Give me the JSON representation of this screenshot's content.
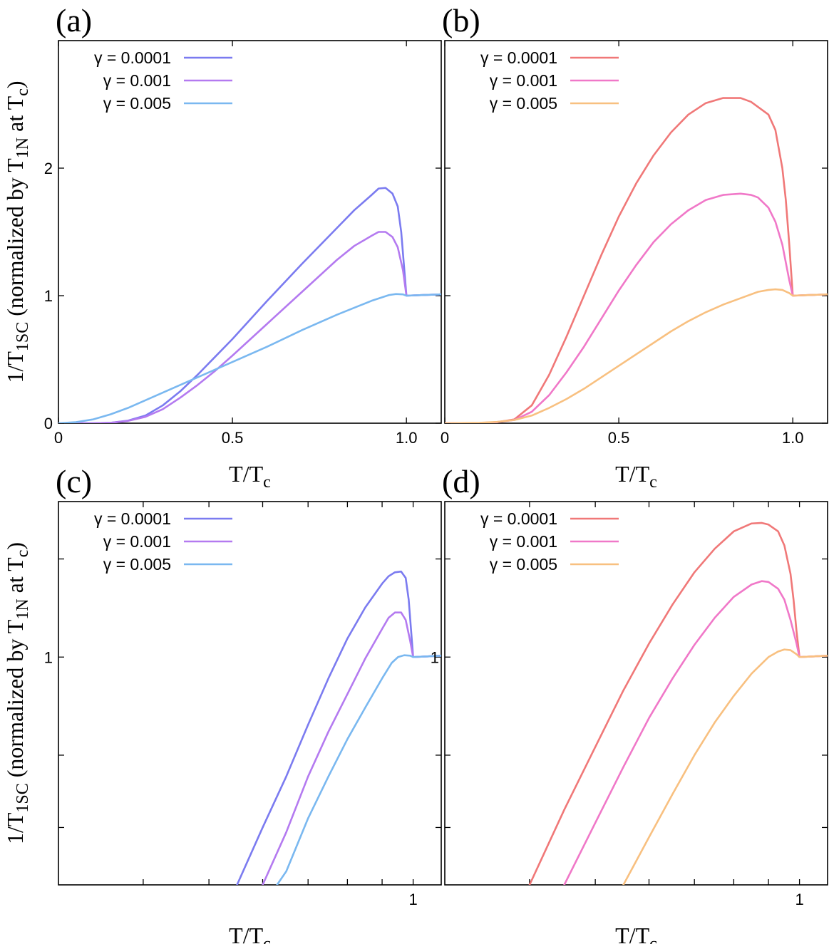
{
  "chart_data": [
    {
      "panel_label": "(a)",
      "type": "line",
      "xlabel_main": "T/T",
      "xlabel_sub": "c",
      "ylabel_parts": [
        "1/T",
        "1SC",
        " (normalized by T",
        "1N",
        " at T",
        "c",
        ")"
      ],
      "xlim": [
        0,
        1.1
      ],
      "ylim": [
        0,
        3
      ],
      "xscale": "linear",
      "yscale": "linear",
      "xticks": [
        {
          "v": 0,
          "label": "0"
        },
        {
          "v": 0.5,
          "label": "0.5"
        },
        {
          "v": 1.0,
          "label": "1.0"
        }
      ],
      "yticks": [
        {
          "v": 0,
          "label": "0"
        },
        {
          "v": 1,
          "label": "1"
        },
        {
          "v": 2,
          "label": "2"
        }
      ],
      "legend_position": "top-left",
      "series": [
        {
          "name": "γ = 0.0001",
          "color": "#7b7bf0",
          "x": [
            0,
            0.1,
            0.15,
            0.2,
            0.25,
            0.3,
            0.35,
            0.4,
            0.45,
            0.5,
            0.6,
            0.7,
            0.8,
            0.85,
            0.9,
            0.92,
            0.94,
            0.96,
            0.975,
            0.985,
            1.0,
            1.05,
            1.1
          ],
          "y": [
            0,
            0,
            0.003,
            0.02,
            0.06,
            0.14,
            0.25,
            0.38,
            0.52,
            0.66,
            0.96,
            1.25,
            1.53,
            1.67,
            1.79,
            1.84,
            1.845,
            1.8,
            1.7,
            1.5,
            1.0,
            1.005,
            1.01
          ]
        },
        {
          "name": "γ = 0.001",
          "color": "#b47af0",
          "x": [
            0,
            0.1,
            0.15,
            0.2,
            0.25,
            0.3,
            0.35,
            0.4,
            0.45,
            0.5,
            0.6,
            0.7,
            0.8,
            0.85,
            0.9,
            0.92,
            0.94,
            0.96,
            0.975,
            0.99,
            1.0,
            1.05,
            1.1
          ],
          "y": [
            0,
            0,
            0.003,
            0.018,
            0.05,
            0.11,
            0.2,
            0.3,
            0.41,
            0.53,
            0.78,
            1.03,
            1.28,
            1.39,
            1.47,
            1.5,
            1.5,
            1.46,
            1.38,
            1.2,
            1.0,
            1.005,
            1.01
          ]
        },
        {
          "name": "γ = 0.005",
          "color": "#7ab8f0",
          "x": [
            0,
            0.05,
            0.1,
            0.15,
            0.2,
            0.25,
            0.3,
            0.35,
            0.4,
            0.45,
            0.5,
            0.6,
            0.7,
            0.8,
            0.9,
            0.95,
            0.97,
            0.99,
            1.0,
            1.05,
            1.1
          ],
          "y": [
            0,
            0.008,
            0.03,
            0.07,
            0.12,
            0.18,
            0.24,
            0.3,
            0.36,
            0.42,
            0.48,
            0.6,
            0.73,
            0.85,
            0.96,
            1.005,
            1.013,
            1.01,
            1.0,
            1.005,
            1.01
          ]
        }
      ]
    },
    {
      "panel_label": "(b)",
      "type": "line",
      "xlabel_main": "T/T",
      "xlabel_sub": "c",
      "ylabel_parts": [],
      "xlim": [
        0,
        1.1
      ],
      "ylim": [
        0,
        3
      ],
      "xscale": "linear",
      "yscale": "linear",
      "xticks": [
        {
          "v": 0,
          "label": "0"
        },
        {
          "v": 0.5,
          "label": "0.5"
        },
        {
          "v": 1.0,
          "label": "1.0"
        }
      ],
      "yticks": [
        {
          "v": 0,
          "label": ""
        },
        {
          "v": 1,
          "label": ""
        },
        {
          "v": 2,
          "label": ""
        }
      ],
      "legend_position": "top-left",
      "series": [
        {
          "name": "γ = 0.0001",
          "color": "#f07878",
          "x": [
            0,
            0.1,
            0.15,
            0.2,
            0.25,
            0.3,
            0.35,
            0.4,
            0.45,
            0.5,
            0.55,
            0.6,
            0.65,
            0.7,
            0.75,
            0.8,
            0.85,
            0.88,
            0.9,
            0.93,
            0.95,
            0.97,
            0.98,
            0.99,
            1.0,
            1.05,
            1.1
          ],
          "y": [
            0,
            0.002,
            0.008,
            0.03,
            0.14,
            0.38,
            0.68,
            1.0,
            1.32,
            1.62,
            1.88,
            2.1,
            2.28,
            2.42,
            2.51,
            2.55,
            2.55,
            2.52,
            2.48,
            2.42,
            2.3,
            2.0,
            1.75,
            1.4,
            1.0,
            1.005,
            1.01
          ]
        },
        {
          "name": "γ = 0.001",
          "color": "#f078c8",
          "x": [
            0,
            0.1,
            0.15,
            0.2,
            0.25,
            0.3,
            0.35,
            0.4,
            0.45,
            0.5,
            0.55,
            0.6,
            0.65,
            0.7,
            0.75,
            0.8,
            0.85,
            0.88,
            0.9,
            0.93,
            0.95,
            0.97,
            0.99,
            1.0,
            1.05,
            1.1
          ],
          "y": [
            0,
            0.002,
            0.008,
            0.025,
            0.09,
            0.22,
            0.4,
            0.6,
            0.82,
            1.04,
            1.24,
            1.42,
            1.56,
            1.67,
            1.75,
            1.79,
            1.8,
            1.79,
            1.77,
            1.69,
            1.58,
            1.4,
            1.12,
            1.0,
            1.005,
            1.01
          ]
        },
        {
          "name": "γ = 0.005",
          "color": "#f8c080",
          "x": [
            0,
            0.1,
            0.15,
            0.2,
            0.25,
            0.3,
            0.35,
            0.4,
            0.45,
            0.5,
            0.55,
            0.6,
            0.65,
            0.7,
            0.75,
            0.8,
            0.85,
            0.9,
            0.93,
            0.95,
            0.97,
            0.99,
            1.0,
            1.05,
            1.1
          ],
          "y": [
            0,
            0.003,
            0.01,
            0.025,
            0.06,
            0.12,
            0.19,
            0.27,
            0.36,
            0.45,
            0.54,
            0.63,
            0.72,
            0.8,
            0.87,
            0.93,
            0.98,
            1.03,
            1.045,
            1.05,
            1.045,
            1.02,
            1.0,
            1.005,
            1.01
          ]
        }
      ]
    },
    {
      "panel_label": "(c)",
      "type": "line",
      "xlabel_main": "T/T",
      "xlabel_sub": "c",
      "ylabel_parts": [
        "1/T",
        "1SC",
        " (normalized by T",
        "1N",
        " at T",
        "c",
        ")"
      ],
      "xlim": [
        0.3,
        1.1
      ],
      "ylim": [
        0.2,
        3
      ],
      "xscale": "log",
      "yscale": "log",
      "xticks": [
        {
          "v": 0.4,
          "label": ""
        },
        {
          "v": 0.5,
          "label": ""
        },
        {
          "v": 0.6,
          "label": ""
        },
        {
          "v": 0.7,
          "label": ""
        },
        {
          "v": 0.8,
          "label": ""
        },
        {
          "v": 0.9,
          "label": ""
        },
        {
          "v": 1,
          "label": "1"
        }
      ],
      "yticks": [
        {
          "v": 0.3,
          "label": ""
        },
        {
          "v": 0.5,
          "label": ""
        },
        {
          "v": 1,
          "label": "1"
        },
        {
          "v": 2,
          "label": ""
        }
      ],
      "legend_position": "top-left",
      "series": [
        {
          "name": "γ = 0.0001",
          "color": "#7b7bf0",
          "x": [
            0.55,
            0.6,
            0.65,
            0.7,
            0.75,
            0.8,
            0.85,
            0.9,
            0.92,
            0.94,
            0.96,
            0.975,
            0.985,
            1.0,
            1.05,
            1.1
          ],
          "y": [
            0.2,
            0.3,
            0.43,
            0.62,
            0.86,
            1.14,
            1.42,
            1.68,
            1.77,
            1.82,
            1.83,
            1.75,
            1.5,
            1.0,
            1.005,
            1.01
          ]
        },
        {
          "name": "γ = 0.001",
          "color": "#b47af0",
          "x": [
            0.6,
            0.65,
            0.7,
            0.75,
            0.8,
            0.85,
            0.9,
            0.92,
            0.94,
            0.96,
            0.975,
            0.99,
            1.0,
            1.05,
            1.1
          ],
          "y": [
            0.2,
            0.29,
            0.43,
            0.59,
            0.77,
            0.99,
            1.22,
            1.32,
            1.37,
            1.37,
            1.3,
            1.12,
            1.0,
            1.005,
            1.01
          ]
        },
        {
          "name": "γ = 0.005",
          "color": "#7ab8f0",
          "x": [
            0.63,
            0.65,
            0.7,
            0.75,
            0.8,
            0.85,
            0.9,
            0.93,
            0.95,
            0.97,
            0.99,
            1.0,
            1.05,
            1.1
          ],
          "y": [
            0.2,
            0.22,
            0.32,
            0.43,
            0.56,
            0.7,
            0.86,
            0.96,
            1.0,
            1.013,
            1.01,
            1.0,
            1.005,
            1.01
          ]
        }
      ]
    },
    {
      "panel_label": "(d)",
      "type": "line",
      "xlabel_main": "T/T",
      "xlabel_sub": "c",
      "ylabel_parts": [],
      "xlim": [
        0.3,
        1.1
      ],
      "ylim": [
        0.2,
        3
      ],
      "xscale": "log",
      "yscale": "log",
      "xticks": [
        {
          "v": 0.4,
          "label": ""
        },
        {
          "v": 0.5,
          "label": ""
        },
        {
          "v": 0.6,
          "label": ""
        },
        {
          "v": 0.7,
          "label": ""
        },
        {
          "v": 0.8,
          "label": ""
        },
        {
          "v": 0.9,
          "label": ""
        },
        {
          "v": 1,
          "label": "1"
        }
      ],
      "yticks": [
        {
          "v": 0.3,
          "label": ""
        },
        {
          "v": 0.5,
          "label": ""
        },
        {
          "v": 1,
          "label": "1"
        },
        {
          "v": 2,
          "label": ""
        }
      ],
      "legend_position": "top-left",
      "series": [
        {
          "name": "γ = 0.0001",
          "color": "#f07878",
          "x": [
            0.4,
            0.45,
            0.5,
            0.55,
            0.6,
            0.65,
            0.7,
            0.75,
            0.8,
            0.85,
            0.88,
            0.9,
            0.93,
            0.95,
            0.97,
            0.98,
            0.99,
            1.0,
            1.05,
            1.1
          ],
          "y": [
            0.2,
            0.34,
            0.53,
            0.79,
            1.1,
            1.45,
            1.82,
            2.15,
            2.43,
            2.57,
            2.58,
            2.55,
            2.43,
            2.2,
            1.8,
            1.5,
            1.2,
            1.0,
            1.005,
            1.01
          ]
        },
        {
          "name": "γ = 0.001",
          "color": "#f078c8",
          "x": [
            0.45,
            0.5,
            0.55,
            0.6,
            0.65,
            0.7,
            0.75,
            0.8,
            0.85,
            0.88,
            0.9,
            0.93,
            0.95,
            0.97,
            0.99,
            1.0,
            1.05,
            1.1
          ],
          "y": [
            0.2,
            0.31,
            0.46,
            0.65,
            0.86,
            1.09,
            1.32,
            1.53,
            1.67,
            1.71,
            1.7,
            1.62,
            1.5,
            1.3,
            1.1,
            1.0,
            1.005,
            1.01
          ]
        },
        {
          "name": "γ = 0.005",
          "color": "#f8c080",
          "x": [
            0.55,
            0.6,
            0.65,
            0.7,
            0.75,
            0.8,
            0.85,
            0.9,
            0.93,
            0.95,
            0.97,
            0.99,
            1.0,
            1.05,
            1.1
          ],
          "y": [
            0.2,
            0.28,
            0.38,
            0.5,
            0.63,
            0.76,
            0.89,
            1.0,
            1.04,
            1.055,
            1.05,
            1.02,
            1.0,
            1.005,
            1.01
          ]
        }
      ]
    }
  ]
}
